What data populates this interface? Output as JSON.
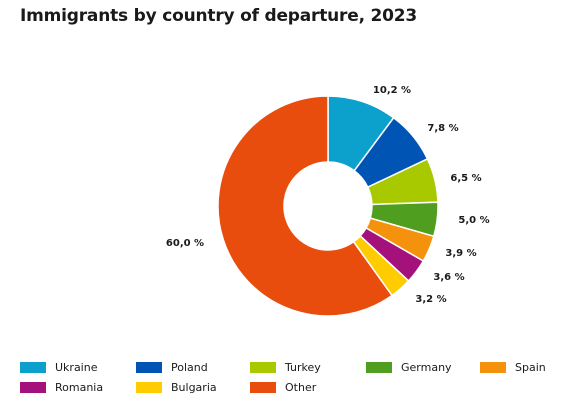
{
  "chart_data": {
    "type": "pie",
    "variant": "donut",
    "title": "Immigrants by country of departure, 2023",
    "categories": [
      "Ukraine",
      "Poland",
      "Turkey",
      "Germany",
      "Spain",
      "Romania",
      "Bulgaria",
      "Other"
    ],
    "values": [
      10.2,
      7.8,
      6.5,
      5.0,
      3.9,
      3.6,
      3.2,
      60.0
    ],
    "labels": [
      "10,2 %",
      "7,8 %",
      "6,5 %",
      "5,0 %",
      "3,9 %",
      "3,6 %",
      "3,2 %",
      "60,0 %"
    ],
    "unit": "%",
    "colors": [
      "#0ba1cc",
      "#0054b4",
      "#a8c800",
      "#4f9e1f",
      "#f5920d",
      "#a5117b",
      "#ffcc00",
      "#e84d0e"
    ],
    "legend_position": "bottom"
  }
}
